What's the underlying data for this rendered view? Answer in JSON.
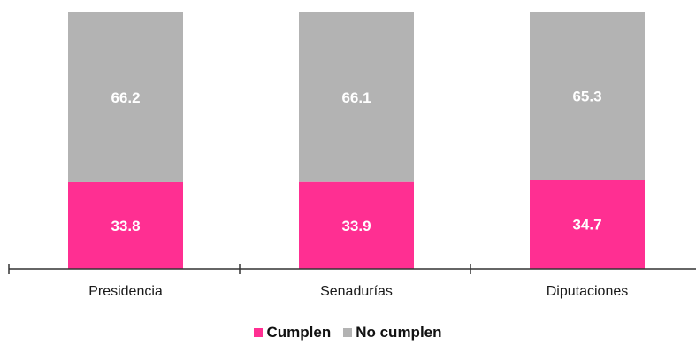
{
  "colors": {
    "cumplen": "#ff2f92",
    "no_cumplen": "#b3b3b3",
    "axis": "#333333"
  },
  "chart_data": {
    "type": "bar",
    "stacked": true,
    "categories": [
      "Presidencia",
      "Senadurías",
      "Diputaciones"
    ],
    "series": [
      {
        "name": "Cumplen",
        "values": [
          33.8,
          33.9,
          34.7
        ]
      },
      {
        "name": "No cumplen",
        "values": [
          66.2,
          66.1,
          65.3
        ]
      }
    ],
    "ylim": [
      0,
      100
    ],
    "grid": false,
    "legend_position": "bottom-center"
  },
  "legend": {
    "cumplen_label": "Cumplen",
    "no_cumplen_label": "No cumplen"
  }
}
